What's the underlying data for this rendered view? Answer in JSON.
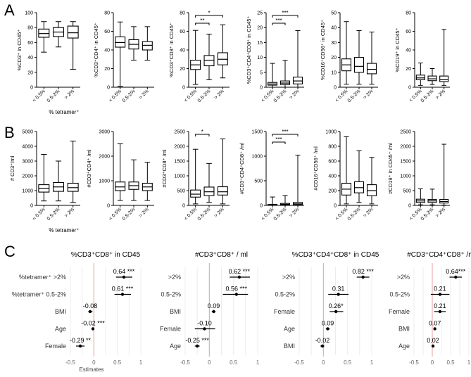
{
  "panels": [
    {
      "label": "A"
    },
    {
      "label": "B"
    },
    {
      "label": "C"
    }
  ],
  "chart_data": [
    {
      "type": "box",
      "panel": "A",
      "ylabel": "%CD3⁺ in CD45⁺",
      "xlabel": "% tetramer⁺",
      "categories": [
        "< 0.5%",
        "0.5-2%",
        "> 2%"
      ],
      "ylim": [
        0,
        100
      ],
      "yticks": [
        "0",
        "20",
        "40",
        "60",
        "80",
        "100"
      ],
      "boxes": [
        {
          "min": 47,
          "q1": 67,
          "median": 72,
          "q3": 78,
          "max": 88
        },
        {
          "min": 54,
          "q1": 68,
          "median": 74,
          "q3": 80,
          "max": 88
        },
        {
          "min": 24,
          "q1": 66,
          "median": 73,
          "q3": 82,
          "max": 88
        }
      ],
      "significance": []
    },
    {
      "type": "box",
      "panel": "A",
      "ylabel": "%CD3⁺CD4⁺ in CD45⁺",
      "xlabel": "",
      "categories": [
        "< 0.5%",
        "0.5-2%",
        "> 2%"
      ],
      "ylim": [
        0,
        80
      ],
      "yticks": [
        "0",
        "20",
        "40",
        "60",
        "80"
      ],
      "boxes": [
        {
          "min": 1,
          "q1": 43,
          "median": 48,
          "q3": 54,
          "max": 70
        },
        {
          "min": 29,
          "q1": 41,
          "median": 46,
          "q3": 51,
          "max": 65
        },
        {
          "min": 29,
          "q1": 40,
          "median": 45,
          "q3": 49,
          "max": 65
        }
      ],
      "significance": []
    },
    {
      "type": "box",
      "panel": "A",
      "ylabel": "%CD3⁺CD8⁺ in CD45⁺",
      "xlabel": "",
      "categories": [
        "< 0.5%",
        "0.5-2%",
        "> 2%"
      ],
      "ylim": [
        0,
        80
      ],
      "yticks": [
        "0",
        "20",
        "40",
        "60",
        "80"
      ],
      "boxes": [
        {
          "min": 3,
          "q1": 19,
          "median": 24,
          "q3": 29,
          "max": 61
        },
        {
          "min": 8,
          "q1": 23,
          "median": 29,
          "q3": 34,
          "max": 57
        },
        {
          "min": 10,
          "q1": 24,
          "median": 30,
          "q3": 37,
          "max": 67
        }
      ],
      "significance": [
        {
          "from": 0,
          "to": 2,
          "label": "*"
        },
        {
          "from": 0,
          "to": 1,
          "label": "**"
        }
      ]
    },
    {
      "type": "box",
      "panel": "A",
      "ylabel": "%CD3⁺CD4⁺CD8⁺ in CD45⁺",
      "xlabel": "",
      "categories": [
        "< 0.5%",
        "0.5-2%",
        "> 2%"
      ],
      "ylim": [
        0,
        25
      ],
      "yticks": [
        "0",
        "5",
        "10",
        "15",
        "20",
        "25"
      ],
      "boxes": [
        {
          "min": 0,
          "q1": 0.7,
          "median": 1.1,
          "q3": 1.6,
          "max": 8
        },
        {
          "min": 0,
          "q1": 0.9,
          "median": 1.4,
          "q3": 2.1,
          "max": 9
        },
        {
          "min": 0,
          "q1": 1.1,
          "median": 2.1,
          "q3": 3.4,
          "max": 19
        }
      ],
      "significance": [
        {
          "from": 0,
          "to": 2,
          "label": "***"
        },
        {
          "from": 0,
          "to": 1,
          "label": "***"
        }
      ]
    },
    {
      "type": "box",
      "panel": "A",
      "ylabel": "%CD16⁺CD56⁺ in CD45⁺",
      "xlabel": "",
      "categories": [
        "< 0.5%",
        "0.5-2%",
        "> 2%"
      ],
      "ylim": [
        0,
        50
      ],
      "yticks": [
        "0",
        "10",
        "20",
        "30",
        "40",
        "50"
      ],
      "boxes": [
        {
          "min": 2,
          "q1": 11,
          "median": 15,
          "q3": 19,
          "max": 44
        },
        {
          "min": 2,
          "q1": 10,
          "median": 14,
          "q3": 20,
          "max": 38
        },
        {
          "min": 2,
          "q1": 9,
          "median": 12,
          "q3": 16,
          "max": 37
        }
      ],
      "significance": []
    },
    {
      "type": "box",
      "panel": "A",
      "ylabel": "%CD19⁺ in CD45⁺",
      "xlabel": "",
      "categories": [
        "< 0.5%",
        "0.5-2%",
        "> 2%"
      ],
      "ylim": [
        0,
        80
      ],
      "yticks": [
        "0",
        "20",
        "40",
        "60",
        "80"
      ],
      "boxes": [
        {
          "min": 2,
          "q1": 8,
          "median": 10,
          "q3": 13,
          "max": 26
        },
        {
          "min": 3,
          "q1": 7,
          "median": 9,
          "q3": 12,
          "max": 20
        },
        {
          "min": 2,
          "q1": 6,
          "median": 8,
          "q3": 12,
          "max": 62
        }
      ],
      "significance": []
    },
    {
      "type": "box",
      "panel": "B",
      "ylabel": "# CD3⁺/ml",
      "xlabel": "% tetramer⁺",
      "categories": [
        "< 0.5%",
        "0.5-2%",
        "> 2%"
      ],
      "ylim": [
        0,
        5000
      ],
      "yticks": [
        "0",
        "1000",
        "2000",
        "3000",
        "4000",
        "5000"
      ],
      "boxes": [
        {
          "min": 300,
          "q1": 900,
          "median": 1150,
          "q3": 1400,
          "max": 3450
        },
        {
          "min": 300,
          "q1": 950,
          "median": 1250,
          "q3": 1550,
          "max": 3000
        },
        {
          "min": 200,
          "q1": 950,
          "median": 1200,
          "q3": 1500,
          "max": 4350
        }
      ],
      "significance": []
    },
    {
      "type": "box",
      "panel": "B",
      "ylabel": "#CD3⁺CD4⁺ /ml",
      "xlabel": "",
      "categories": [
        "< 0.5%",
        "0.5-2%",
        "> 2%"
      ],
      "ylim": [
        0,
        3000
      ],
      "yticks": [
        "0",
        "1000",
        "2000",
        "3000"
      ],
      "boxes": [
        {
          "min": 200,
          "q1": 600,
          "median": 750,
          "q3": 950,
          "max": 2500
        },
        {
          "min": 200,
          "q1": 650,
          "median": 800,
          "q3": 950,
          "max": 1850
        },
        {
          "min": 200,
          "q1": 600,
          "median": 750,
          "q3": 900,
          "max": 1750
        }
      ],
      "significance": []
    },
    {
      "type": "box",
      "panel": "B",
      "ylabel": "#CD3⁺CD8⁺ /ml",
      "xlabel": "",
      "categories": [
        "< 0.5%",
        "0.5-2%",
        "> 2%"
      ],
      "ylim": [
        0,
        2500
      ],
      "yticks": [
        "0",
        "500",
        "1000",
        "1500",
        "2000",
        "2500"
      ],
      "boxes": [
        {
          "min": 50,
          "q1": 280,
          "median": 380,
          "q3": 520,
          "max": 1900
        },
        {
          "min": 100,
          "q1": 330,
          "median": 460,
          "q3": 620,
          "max": 1420
        },
        {
          "min": 50,
          "q1": 350,
          "median": 460,
          "q3": 630,
          "max": 2250
        }
      ],
      "significance": [
        {
          "from": 0,
          "to": 1,
          "label": "*"
        }
      ]
    },
    {
      "type": "box",
      "panel": "B",
      "ylabel": "#CD3⁺CD4⁺CD8⁺ /ml",
      "xlabel": "",
      "categories": [
        "< 0.5%",
        "0.5-2%",
        "> 2%"
      ],
      "ylim": [
        0,
        1500
      ],
      "yticks": [
        "0",
        "500",
        "1000",
        "1500"
      ],
      "boxes": [
        {
          "min": 0,
          "q1": 5,
          "median": 12,
          "q3": 22,
          "max": 170
        },
        {
          "min": 0,
          "q1": 8,
          "median": 20,
          "q3": 40,
          "max": 200
        },
        {
          "min": 0,
          "q1": 12,
          "median": 30,
          "q3": 60,
          "max": 1020
        }
      ],
      "significance": [
        {
          "from": 0,
          "to": 2,
          "label": "***"
        },
        {
          "from": 0,
          "to": 1,
          "label": "***"
        }
      ]
    },
    {
      "type": "box",
      "panel": "B",
      "ylabel": "#CD16⁺CD56⁺ /ml",
      "xlabel": "",
      "categories": [
        "< 0.5%",
        "0.5-2%",
        "> 2%"
      ],
      "ylim": [
        0,
        1000
      ],
      "yticks": [
        "0",
        "200",
        "400",
        "600",
        "800",
        "1000"
      ],
      "boxes": [
        {
          "min": 20,
          "q1": 140,
          "median": 220,
          "q3": 300,
          "max": 930
        },
        {
          "min": 40,
          "q1": 170,
          "median": 240,
          "q3": 320,
          "max": 740
        },
        {
          "min": 20,
          "q1": 130,
          "median": 200,
          "q3": 280,
          "max": 650
        }
      ],
      "significance": []
    },
    {
      "type": "box",
      "panel": "B",
      "ylabel": "#CD19⁺ in CD45⁺ /ml",
      "xlabel": "",
      "categories": [
        "< 0.5%",
        "0.5-2%",
        "> 2%"
      ],
      "ylim": [
        0,
        2500
      ],
      "yticks": [
        "0",
        "500",
        "1000",
        "1500",
        "2000",
        "2500"
      ],
      "boxes": [
        {
          "min": 20,
          "q1": 100,
          "median": 150,
          "q3": 210,
          "max": 560
        },
        {
          "min": 20,
          "q1": 100,
          "median": 150,
          "q3": 200,
          "max": 550
        },
        {
          "min": 10,
          "q1": 80,
          "median": 130,
          "q3": 200,
          "max": 2070
        }
      ],
      "significance": []
    },
    {
      "type": "forest",
      "panel": "C",
      "title": "%CD3⁺CD8⁺ in CD45",
      "xlabel": "Estimates",
      "xlim": [
        -0.5,
        1.0
      ],
      "xticks": [
        "-0.5",
        "0",
        "0.5",
        "1"
      ],
      "rows": [
        {
          "label": "%tetramer⁺ >2%",
          "estimate": 0.64,
          "lo": 0.47,
          "hi": 0.82,
          "text": "0.64 ***"
        },
        {
          "label": "%tetramer⁺ 0.5-2%",
          "estimate": 0.61,
          "lo": 0.44,
          "hi": 0.79,
          "text": "0.61 ***"
        },
        {
          "label": "BMI",
          "estimate": -0.08,
          "lo": -0.12,
          "hi": -0.03,
          "text": "-0.08"
        },
        {
          "label": "Age",
          "estimate": -0.02,
          "lo": -0.04,
          "hi": 0.0,
          "text": "-0.02 ***"
        },
        {
          "label": "Female",
          "estimate": -0.29,
          "lo": -0.38,
          "hi": -0.2,
          "text": "-0.29 **"
        }
      ]
    },
    {
      "type": "forest",
      "panel": "C",
      "title": "#CD3⁺CD8⁺ / ml",
      "xlabel": "",
      "xlim": [
        -0.5,
        1.0
      ],
      "xticks": [
        "-0.5",
        "0",
        "0.5",
        "1"
      ],
      "rows": [
        {
          "label": ">2%",
          "estimate": 0.62,
          "lo": 0.42,
          "hi": 0.84,
          "text": "0.62 ***"
        },
        {
          "label": "0.5-2%",
          "estimate": 0.56,
          "lo": 0.28,
          "hi": 0.8,
          "text": "0.56 ***"
        },
        {
          "label": "BMI",
          "estimate": 0.09,
          "lo": 0.05,
          "hi": 0.13,
          "text": "0.09"
        },
        {
          "label": "Female",
          "estimate": -0.1,
          "lo": -0.3,
          "hi": 0.12,
          "text": "-0.10"
        },
        {
          "label": "Age",
          "estimate": -0.25,
          "lo": -0.3,
          "hi": -0.2,
          "text": "-0.25 ***"
        }
      ]
    },
    {
      "type": "forest",
      "panel": "C",
      "title": "%CD3⁺CD4⁺CD8⁺ in CD45",
      "xlabel": "",
      "xlim": [
        -0.5,
        1.0
      ],
      "xticks": [
        "-0.5",
        "0",
        "0.5",
        "1"
      ],
      "rows": [
        {
          "label": ">2%",
          "estimate": 0.82,
          "lo": 0.69,
          "hi": 0.95,
          "text": "0.82 ***"
        },
        {
          "label": "0.5-2%",
          "estimate": 0.31,
          "lo": 0.1,
          "hi": 0.52,
          "text": "0.31"
        },
        {
          "label": "Female",
          "estimate": 0.26,
          "lo": 0.13,
          "hi": 0.41,
          "text": "0.26*"
        },
        {
          "label": "Age",
          "estimate": 0.09,
          "lo": 0.05,
          "hi": 0.13,
          "text": "0.09"
        },
        {
          "label": "BMI",
          "estimate": -0.02,
          "lo": -0.06,
          "hi": 0.02,
          "text": "-0.02"
        }
      ]
    },
    {
      "type": "forest",
      "panel": "C",
      "title": "#CD3⁺CD4⁺CD8⁺ /ml",
      "xlabel": "",
      "xlim": [
        -0.5,
        1.0
      ],
      "xticks": [
        "-0.5",
        "0",
        "0.5",
        "1"
      ],
      "rows": [
        {
          "label": ">2%",
          "estimate": 0.64,
          "lo": 0.47,
          "hi": 0.81,
          "text": "0.64***"
        },
        {
          "label": "0.5-2%",
          "estimate": 0.21,
          "lo": -0.04,
          "hi": 0.47,
          "text": "0.21"
        },
        {
          "label": "Female",
          "estimate": 0.21,
          "lo": 0.05,
          "hi": 0.37,
          "text": "0.21"
        },
        {
          "label": "BMI",
          "estimate": 0.07,
          "lo": 0.04,
          "hi": 0.1,
          "text": "0.07"
        },
        {
          "label": "Age",
          "estimate": 0.02,
          "lo": 0.0,
          "hi": 0.04,
          "text": "0.02"
        }
      ]
    }
  ]
}
